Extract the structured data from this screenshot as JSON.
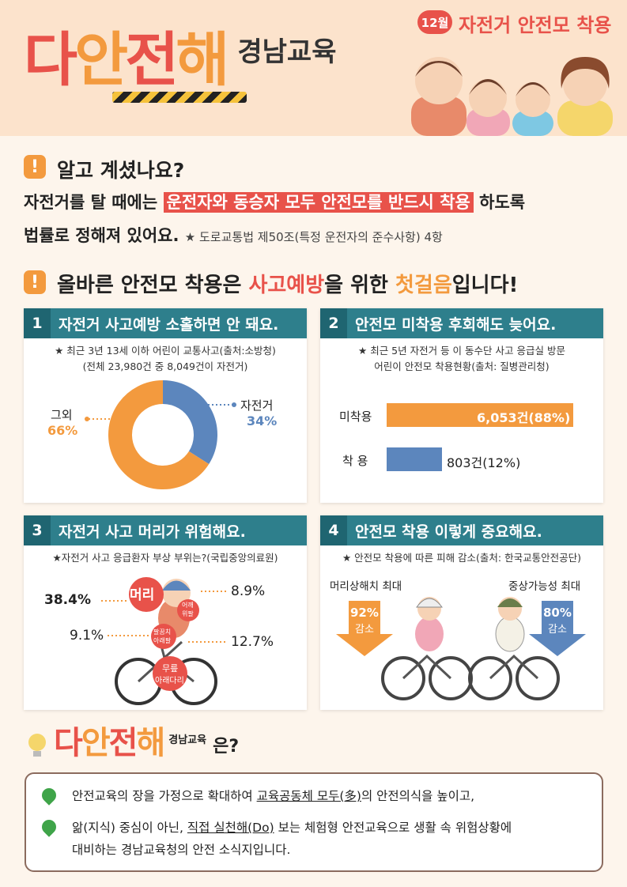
{
  "header": {
    "brand": [
      "다",
      "안",
      "전",
      "해"
    ],
    "brand_sub": "경남교육",
    "month_badge": "12월",
    "month_title": "자전거 안전모 착용"
  },
  "notice1": {
    "icon": "!",
    "title": "알고 계셨나요?",
    "line1_pre": "자전거를 탈 때에는 ",
    "line1_highlight": "운전자와 동승자 모두 안전모를 반드시 착용",
    "line1_post": " 하도록",
    "line2": "법률로 정해져 있어요.",
    "line2_ref": "★ 도로교통법 제50조(특정 운전자의 준수사항) 4항"
  },
  "notice2": {
    "icon": "!",
    "pre": "올바른 안전모 착용은 ",
    "red": "사고예방",
    "mid": "을 위한 ",
    "orange": "첫걸음",
    "post": "입니다!"
  },
  "card1": {
    "num": "1",
    "title": "자전거 사고예방 소홀하면 안 돼요.",
    "note1": "★ 최근 3년 13세 이하 어린이 교통사고(출처:소방청)",
    "note2": "(전체 23,980건 중 8,049건이 자전거)",
    "other_label": "그외",
    "other_value": "66%",
    "bike_label": "자전거",
    "bike_value": "34%"
  },
  "card2": {
    "num": "2",
    "title": "안전모 미착용 후회해도 늦어요.",
    "note1": "★ 최근 5년 자전거 등 이 동수단 사고 응급실 방문",
    "note2": "어린이 안전모 착용현황(출처: 질병관리청)",
    "row1_label": "미착용",
    "row1_value": "6,053건(88%)",
    "row2_label": "착  용",
    "row2_value": "803건(12%)"
  },
  "card3": {
    "num": "3",
    "title": "자전거 사고 머리가 위험해요.",
    "note": "★자전거 사고 응급환자 부상 부위는?(국립중앙의료원)",
    "head_label": "머리",
    "head_value": "38.4%",
    "shoulder_label1": "어깨",
    "shoulder_label2": "위팔",
    "shoulder_value": "8.9%",
    "elbow_label1": "팔꿈치",
    "elbow_label2": "아래팔",
    "elbow_value": "9.1%",
    "knee_label1": "무릎",
    "knee_label2": "아래다리",
    "knee_value": "12.7%"
  },
  "card4": {
    "num": "4",
    "title": "안전모 착용 이렇게 중요해요.",
    "note": "★ 안전모 착용에 따른 피해 감소(출처: 한국교통안전공단)",
    "left_label": "머리상해치 최대",
    "left_value": "92%",
    "left_unit": "감소",
    "right_label": "중상가능성 최대",
    "right_value": "80%",
    "right_unit": "감소"
  },
  "about": {
    "brand": [
      "다",
      "안",
      "전",
      "해"
    ],
    "brand_sub": "경남교육",
    "suffix": "은?",
    "line1_a": "안전교육의 장을 가정으로 확대하여 ",
    "line1_ul": "교육공동체 모두(多)",
    "line1_b": "의 안전의식을 높이고,",
    "line2_a": "앎(지식) 중심이 아닌, ",
    "line2_ul": "직접 실천해(Do)",
    "line2_b": " 보는 체험형 안전교육으로 생활 속 위험상황에",
    "line3": "대비하는 경남교육청의 안전 소식지입니다."
  },
  "colors": {
    "red": "#e8524a",
    "orange": "#f39a3e",
    "teal": "#2e7f8c",
    "blue": "#5c86bd"
  },
  "chart_data": [
    {
      "type": "pie",
      "title": "최근 3년 13세 이하 어린이 교통사고",
      "categories": [
        "자전거",
        "그외"
      ],
      "values": [
        34,
        66
      ]
    },
    {
      "type": "bar",
      "title": "어린이 안전모 착용현황",
      "categories": [
        "미착용",
        "착 용"
      ],
      "values": [
        6053,
        803
      ],
      "percent": [
        88,
        12
      ]
    },
    {
      "type": "bar",
      "title": "자전거 사고 응급환자 부상 부위",
      "categories": [
        "머리",
        "어깨·위팔",
        "팔꿈치·아래팔",
        "무릎·아래다리"
      ],
      "values": [
        38.4,
        8.9,
        9.1,
        12.7
      ]
    }
  ]
}
